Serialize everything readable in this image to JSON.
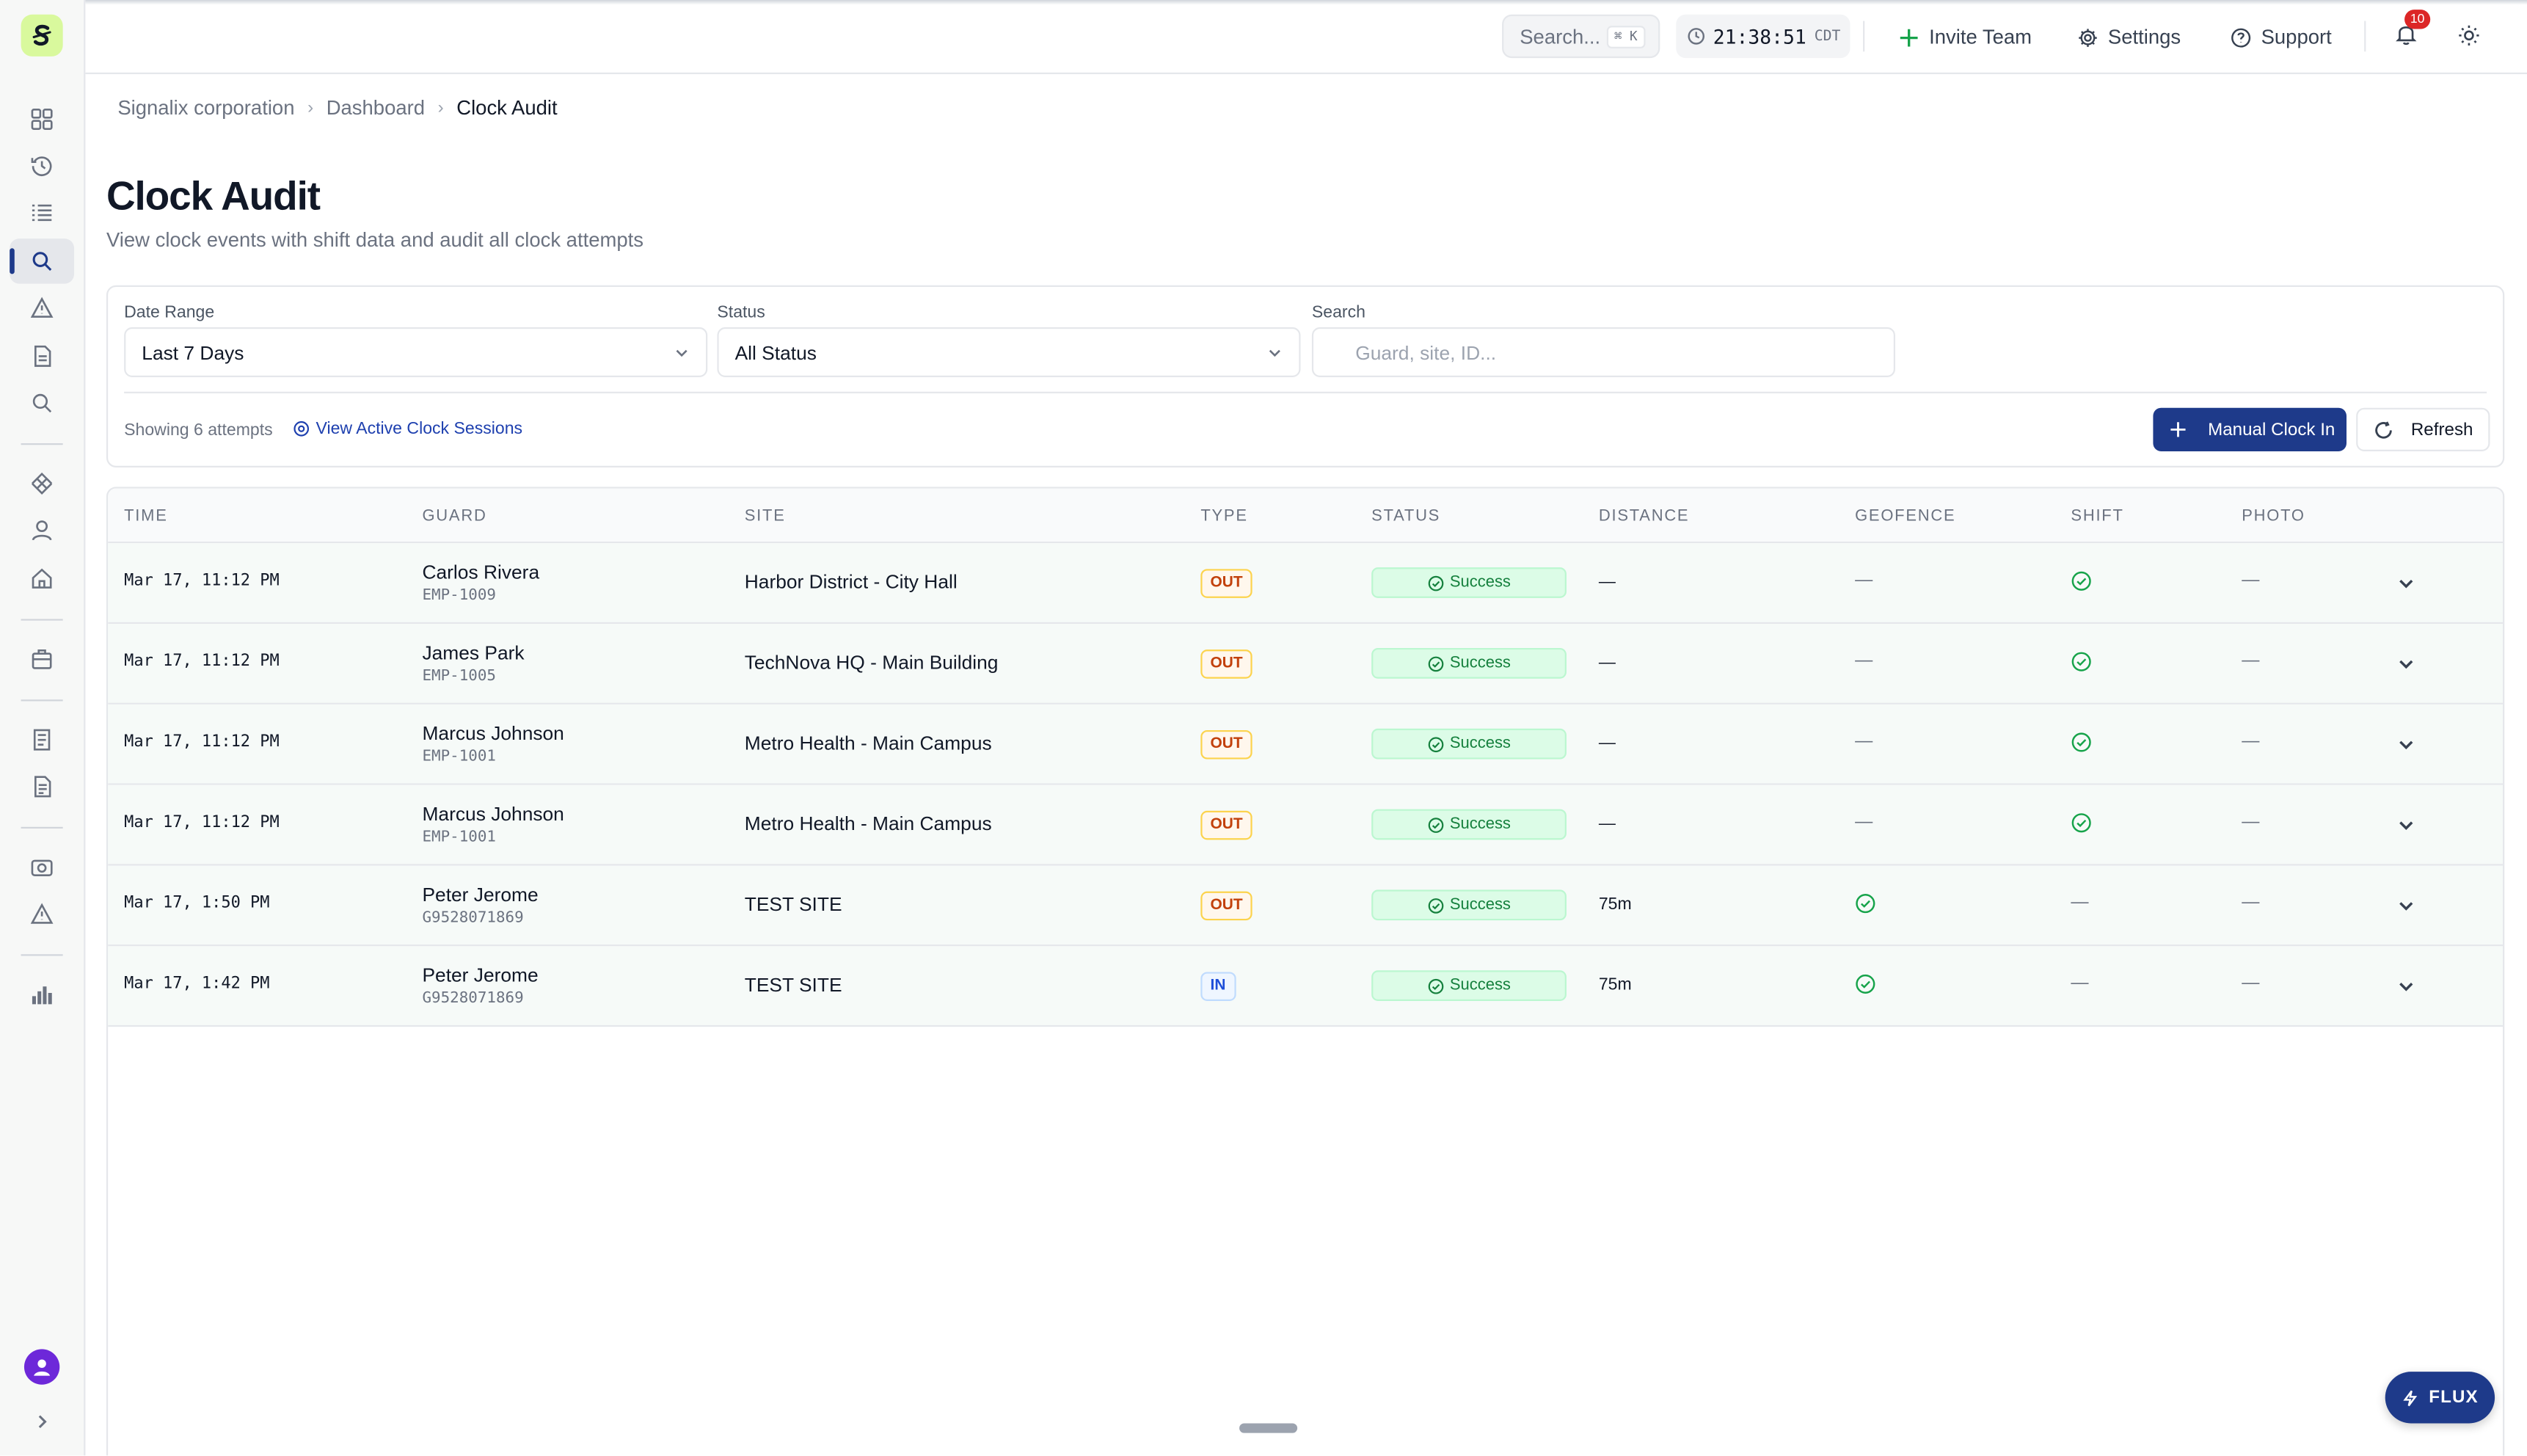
{
  "topbar": {
    "search_placeholder": "Search...",
    "search_shortcut": "⌘ K",
    "time": "21:38:51",
    "timezone": "CDT",
    "invite_label": "Invite Team",
    "settings_label": "Settings",
    "support_label": "Support",
    "notification_count": "10"
  },
  "breadcrumb": [
    "Signalix corporation",
    "Dashboard",
    "Clock Audit"
  ],
  "page": {
    "title": "Clock Audit",
    "subtitle": "View clock events with shift data and audit all clock attempts"
  },
  "filters": {
    "date_range_label": "Date Range",
    "date_range_value": "Last 7 Days",
    "status_label": "Status",
    "status_value": "All Status",
    "search_label": "Search",
    "search_placeholder": "Guard, site, ID...",
    "showing": "Showing 6 attempts",
    "view_active": "View Active Clock Sessions",
    "manual_clock_in": "Manual Clock In",
    "refresh": "Refresh"
  },
  "table": {
    "headers": [
      "TIME",
      "GUARD",
      "SITE",
      "TYPE",
      "STATUS",
      "DISTANCE",
      "GEOFENCE",
      "SHIFT",
      "PHOTO"
    ],
    "rows": [
      {
        "time": "Mar 17, 11:12 PM",
        "guard": "Carlos Rivera",
        "id": "EMP-1009",
        "site": "Harbor District - City Hall",
        "type": "OUT",
        "status": "Success",
        "distance": "—",
        "geofence": "—",
        "shift": "check",
        "photo": "—"
      },
      {
        "time": "Mar 17, 11:12 PM",
        "guard": "James Park",
        "id": "EMP-1005",
        "site": "TechNova HQ - Main Building",
        "type": "OUT",
        "status": "Success",
        "distance": "—",
        "geofence": "—",
        "shift": "check",
        "photo": "—"
      },
      {
        "time": "Mar 17, 11:12 PM",
        "guard": "Marcus Johnson",
        "id": "EMP-1001",
        "site": "Metro Health - Main Campus",
        "type": "OUT",
        "status": "Success",
        "distance": "—",
        "geofence": "—",
        "shift": "check",
        "photo": "—"
      },
      {
        "time": "Mar 17, 11:12 PM",
        "guard": "Marcus Johnson",
        "id": "EMP-1001",
        "site": "Metro Health - Main Campus",
        "type": "OUT",
        "status": "Success",
        "distance": "—",
        "geofence": "—",
        "shift": "check",
        "photo": "—"
      },
      {
        "time": "Mar 17, 1:50 PM",
        "guard": "Peter Jerome",
        "id": "G9528071869",
        "site": "TEST SITE",
        "type": "OUT",
        "status": "Success",
        "distance": "75m",
        "geofence": "check",
        "shift": "—",
        "photo": "—"
      },
      {
        "time": "Mar 17, 1:42 PM",
        "guard": "Peter Jerome",
        "id": "G9528071869",
        "site": "TEST SITE",
        "type": "IN",
        "status": "Success",
        "distance": "75m",
        "geofence": "check",
        "shift": "—",
        "photo": "—"
      }
    ]
  },
  "flux_label": "FLUX"
}
